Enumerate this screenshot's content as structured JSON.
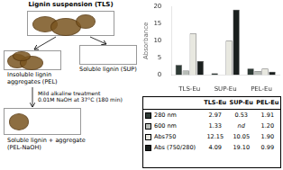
{
  "chart_data": {
    "type": "bar",
    "categories": [
      "TLS-Eu",
      "SUP-Eu",
      "PEL-Eu"
    ],
    "series": [
      {
        "name": "280 nm",
        "color": "#2e3a35",
        "values": [
          2.97,
          0.53,
          1.91
        ],
        "value_labels": [
          "2.97",
          "0.53",
          "1.91"
        ]
      },
      {
        "name": "600 nm",
        "color": "#b8bdb8",
        "values": [
          1.33,
          0.0,
          1.2
        ],
        "value_labels": [
          "1.33",
          "nd",
          "1.20"
        ]
      },
      {
        "name": "Abs750",
        "color": "#e8e8e0",
        "values": [
          12.15,
          10.05,
          1.9
        ],
        "value_labels": [
          "12.15",
          "10.05",
          "1.90"
        ]
      },
      {
        "name": "Abs (750/280)",
        "color": "#1a1f1e",
        "values": [
          4.09,
          19.1,
          0.99
        ],
        "value_labels": [
          "4.09",
          "19.10",
          "0.99"
        ]
      }
    ],
    "ylabel": "Absorbance",
    "ylim": [
      0,
      20
    ],
    "yticks": [
      0,
      5,
      10,
      15,
      20
    ],
    "grid": false,
    "annotations": [
      "Lignin suspension (TLS)",
      "Insoluble lignin\naggregates (PEL)",
      "Soluble lignin (SUP)",
      "Mild alkaline treatment\n0.01M NaOH at 37°C (180 min)",
      "Soluble lignin + aggregate\n(PEL-NaOH)"
    ]
  }
}
